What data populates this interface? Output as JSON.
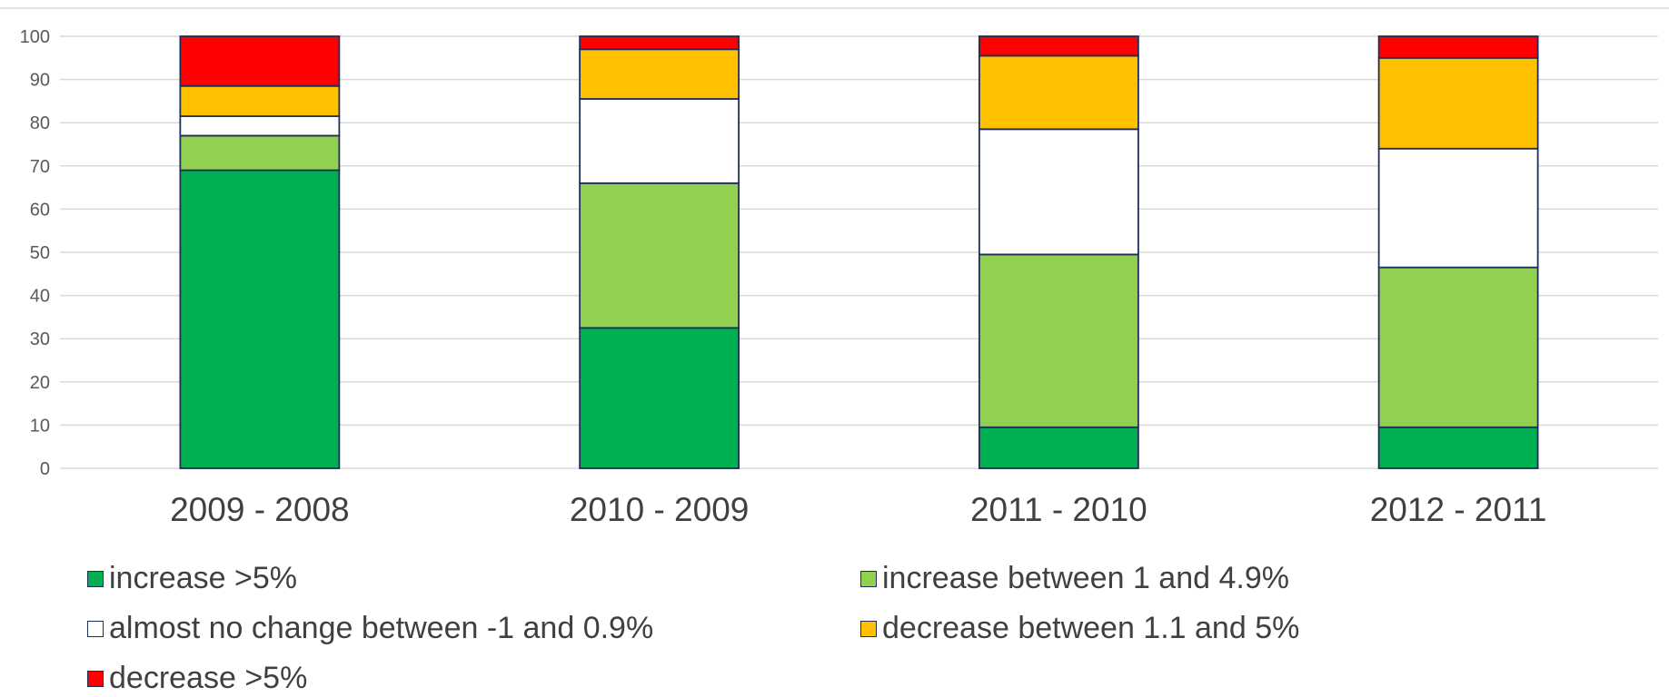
{
  "chart_data": {
    "type": "bar",
    "stacked": true,
    "categories": [
      "2009 - 2008",
      "2010 - 2009",
      "2011 - 2010",
      "2012 - 2011"
    ],
    "series": [
      {
        "name": "increase >5%",
        "color": "#00b050",
        "values": [
          69,
          32.5,
          9.5,
          9.5
        ]
      },
      {
        "name": "increase between 1 and 4.9%",
        "color": "#92d050",
        "values": [
          8,
          33.5,
          40,
          37
        ]
      },
      {
        "name": "almost no change between -1 and 0.9%",
        "color": "#ffffff",
        "values": [
          4.5,
          19.5,
          29,
          27.5
        ]
      },
      {
        "name": "decrease between 1.1 and 5%",
        "color": "#ffc000",
        "values": [
          7,
          11.5,
          17,
          21
        ]
      },
      {
        "name": "decrease >5%",
        "color": "#ff0000",
        "values": [
          11.5,
          3,
          4.5,
          5
        ]
      }
    ],
    "ylim": [
      0,
      100
    ],
    "yticks": [
      "0",
      "10",
      "20",
      "30",
      "40",
      "50",
      "60",
      "70",
      "80",
      "90",
      "100"
    ],
    "grid": true,
    "legend_position": "bottom"
  }
}
